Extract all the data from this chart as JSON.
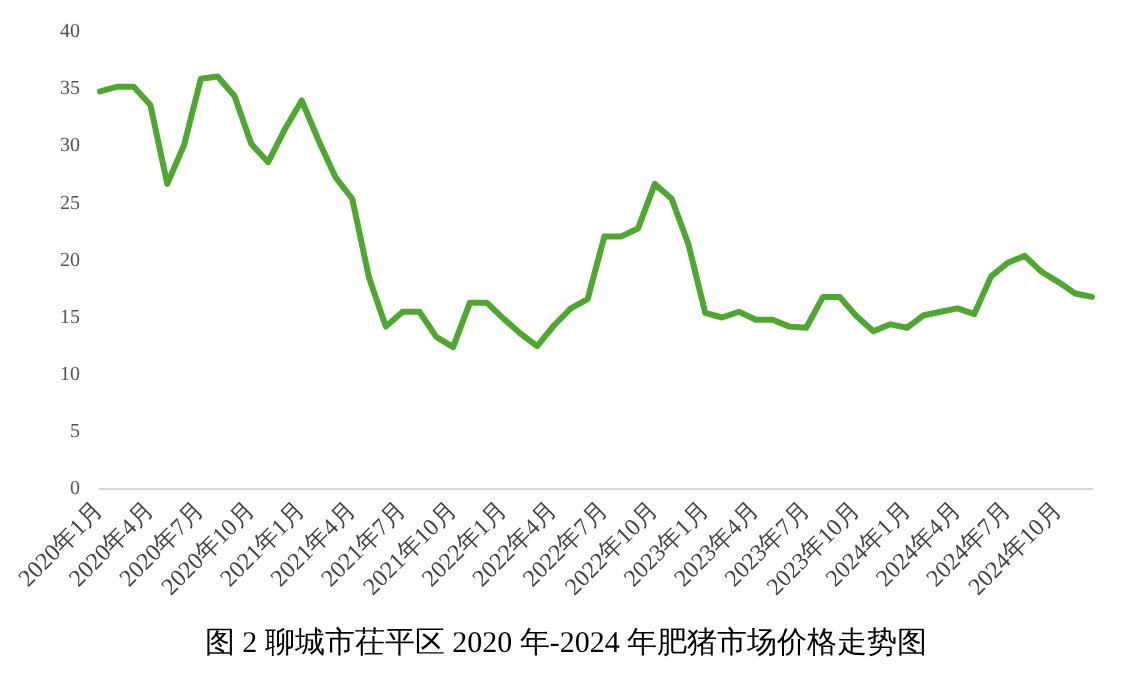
{
  "chart_data": {
    "type": "line",
    "title": "图 2  聊城市茌平区 2020 年-2024 年肥猪市场价格走势图",
    "categories": [
      "2020年1月",
      null,
      null,
      "2020年4月",
      null,
      null,
      "2020年7月",
      null,
      null,
      "2020年10月",
      null,
      null,
      "2021年1月",
      null,
      null,
      "2021年4月",
      null,
      null,
      "2021年7月",
      null,
      null,
      "2021年10月",
      null,
      null,
      "2022年1月",
      null,
      null,
      "2022年4月",
      null,
      null,
      "2022年7月",
      null,
      null,
      "2022年10月",
      null,
      null,
      "2023年1月",
      null,
      null,
      "2023年4月",
      null,
      null,
      "2023年7月",
      null,
      null,
      "2023年10月",
      null,
      null,
      "2024年1月",
      null,
      null,
      "2024年4月",
      null,
      null,
      "2024年7月",
      null,
      null,
      "2024年10月",
      null,
      null
    ],
    "series": [
      {
        "color": "#4ea72e",
        "values": [
          34.8,
          35.2,
          35.2,
          33.6,
          26.7,
          30.1,
          35.9,
          36.1,
          34.4,
          30.2,
          28.6,
          31.5,
          34.0,
          30.5,
          27.3,
          25.4,
          18.5,
          14.2,
          15.5,
          15.5,
          13.3,
          12.4,
          16.3,
          16.3,
          14.9,
          13.6,
          12.5,
          14.3,
          15.8,
          16.6,
          22.1,
          22.1,
          22.8,
          26.7,
          25.4,
          21.4,
          15.4,
          15.0,
          15.5,
          14.8,
          14.8,
          14.2,
          14.1,
          16.8,
          16.8,
          15.1,
          13.8,
          14.4,
          14.1,
          15.2,
          15.5,
          15.8,
          15.3,
          18.6,
          19.8,
          20.4,
          19.0,
          18.1,
          17.1,
          16.8
        ]
      }
    ],
    "ylim": [
      0,
      40
    ],
    "yticks": [
      0,
      5,
      10,
      15,
      20,
      25,
      30,
      35,
      40
    ],
    "grid": false,
    "legend": false,
    "marker": "none",
    "line_style": "solid"
  }
}
